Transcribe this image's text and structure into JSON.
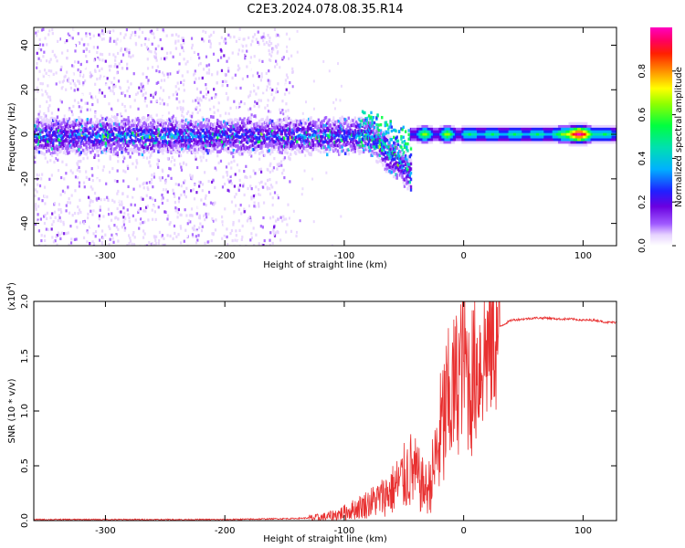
{
  "title": "C2E3.2024.078.08.35.R14",
  "chart_data": [
    {
      "type": "heatmap",
      "xlabel": "Height of straight line (km)",
      "ylabel": "Frequency (Hz)",
      "xlim": [
        -360,
        128
      ],
      "ylim": [
        -50,
        48
      ],
      "xticks": [
        -300,
        -200,
        -100,
        0,
        100
      ],
      "xtick_labels": [
        "-300",
        "-200",
        "-100",
        "0",
        "100"
      ],
      "yticks": [
        -40,
        -20,
        0,
        20,
        40
      ],
      "ytick_labels": [
        "-40",
        "-20",
        "0",
        "20",
        "40"
      ],
      "colorbar": {
        "label": "Normalized spectral amplitude",
        "range": [
          0,
          1
        ],
        "ticks": [
          0.0,
          0.2,
          0.4,
          0.6,
          0.8
        ],
        "tick_labels": [
          "0.0",
          "0.2",
          "0.4",
          "0.6",
          "0.8"
        ],
        "colormap": [
          "#ffffff",
          "#e6d2ff",
          "#a05aff",
          "#6a00e0",
          "#2020ff",
          "#00b0ff",
          "#00e0b0",
          "#00ff40",
          "#90ff00",
          "#ffff00",
          "#ff9000",
          "#ff2000",
          "#ff0060",
          "#ff00c0"
        ]
      },
      "features": {
        "noise_region_x": [
          -360,
          -160
        ],
        "carrier_line_freq_hz": 0,
        "carrier_dip": {
          "x": [
            -80,
            -40
          ],
          "min_freq_hz": -20
        },
        "strong_segment": {
          "x": [
            -45,
            125
          ],
          "peak_x": 95
        }
      }
    },
    {
      "type": "line",
      "xlabel": "Height of straight line (km)",
      "ylabel": "SNR (10 * v/v)",
      "y_multiplier": "(x10",
      "y_multiplier_exp": "4",
      "y_multiplier_close": ")",
      "xlim": [
        -360,
        128
      ],
      "ylim": [
        0,
        2.0
      ],
      "xticks": [
        -300,
        -200,
        -100,
        0,
        100
      ],
      "xtick_labels": [
        "-300",
        "-200",
        "-100",
        "0",
        "100"
      ],
      "yticks": [
        0.0,
        0.5,
        1.0,
        1.5,
        2.0
      ],
      "ytick_labels": [
        "0.0",
        "0.5",
        "1.0",
        "1.5",
        "2.0"
      ],
      "series": [
        {
          "color": "#e83030",
          "x": [
            -360,
            -300,
            -200,
            -140,
            -120,
            -110,
            -100,
            -90,
            -80,
            -70,
            -60,
            -50,
            -45,
            -40,
            -35,
            -30,
            -25,
            -20,
            -15,
            -10,
            -5,
            -2,
            0,
            5,
            10,
            15,
            20,
            25,
            30,
            35,
            40,
            50,
            60,
            70,
            80,
            90,
            100,
            110,
            120,
            128
          ],
          "y": [
            0.01,
            0.01,
            0.01,
            0.02,
            0.03,
            0.05,
            0.08,
            0.12,
            0.17,
            0.22,
            0.3,
            0.42,
            0.5,
            0.45,
            0.35,
            0.3,
            0.5,
            0.8,
            1.05,
            1.2,
            1.35,
            1.5,
            1.6,
            1.3,
            1.45,
            1.55,
            1.65,
            1.72,
            1.77,
            1.8,
            1.83,
            1.84,
            1.85,
            1.85,
            1.84,
            1.84,
            1.83,
            1.83,
            1.81,
            1.81
          ]
        }
      ]
    }
  ]
}
